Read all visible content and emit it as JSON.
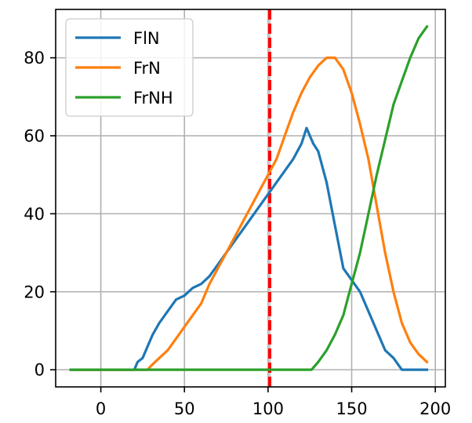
{
  "chart_data": {
    "type": "line",
    "title": "",
    "xlabel": "",
    "ylabel": "",
    "xlim": [
      -27,
      206
    ],
    "ylim": [
      -4.4,
      92.4
    ],
    "grid": true,
    "legend_position": "upper-left",
    "x_ticks": [
      0,
      50,
      100,
      150,
      200
    ],
    "y_ticks": [
      0,
      20,
      40,
      60,
      80
    ],
    "vline": {
      "x": 101,
      "color": "#ff0000",
      "style": "dashed"
    },
    "series": [
      {
        "name": "FlN",
        "color": "#1f77b4",
        "x": [
          -18,
          20,
          22,
          25,
          28,
          31,
          35,
          40,
          45,
          50,
          55,
          60,
          65,
          70,
          75,
          80,
          85,
          90,
          95,
          100,
          105,
          110,
          115,
          120,
          123,
          125,
          127,
          130,
          135,
          140,
          145,
          150,
          155,
          160,
          165,
          170,
          175,
          180,
          195
        ],
        "y": [
          0,
          0,
          2,
          3,
          6,
          9,
          12,
          15,
          18,
          19,
          21,
          22,
          24,
          27,
          30,
          33,
          36,
          39,
          42,
          45,
          48,
          51,
          54,
          58,
          62,
          60,
          58,
          56,
          48,
          37,
          26,
          23,
          20,
          15,
          10,
          5,
          3,
          0,
          0
        ]
      },
      {
        "name": "FrN",
        "color": "#ff7f0e",
        "x": [
          -18,
          28,
          30,
          35,
          40,
          45,
          50,
          55,
          60,
          65,
          70,
          75,
          80,
          85,
          90,
          95,
          100,
          105,
          110,
          115,
          120,
          125,
          130,
          135,
          140,
          145,
          150,
          155,
          160,
          165,
          170,
          175,
          180,
          185,
          190,
          195
        ],
        "y": [
          0,
          0,
          1,
          3,
          5,
          8,
          11,
          14,
          17,
          22,
          26,
          30,
          34,
          38,
          42,
          46,
          50,
          54,
          60,
          66,
          71,
          75,
          78,
          80,
          80,
          77,
          71,
          63,
          54,
          42,
          30,
          20,
          12,
          7,
          4,
          2
        ]
      },
      {
        "name": "FrNH",
        "color": "#2ca02c",
        "x": [
          -18,
          126,
          130,
          135,
          140,
          145,
          150,
          155,
          160,
          165,
          170,
          175,
          180,
          185,
          190,
          195
        ],
        "y": [
          0,
          0,
          2,
          5,
          9,
          14,
          22,
          30,
          40,
          50,
          59,
          68,
          74,
          80,
          85,
          88
        ]
      }
    ]
  }
}
